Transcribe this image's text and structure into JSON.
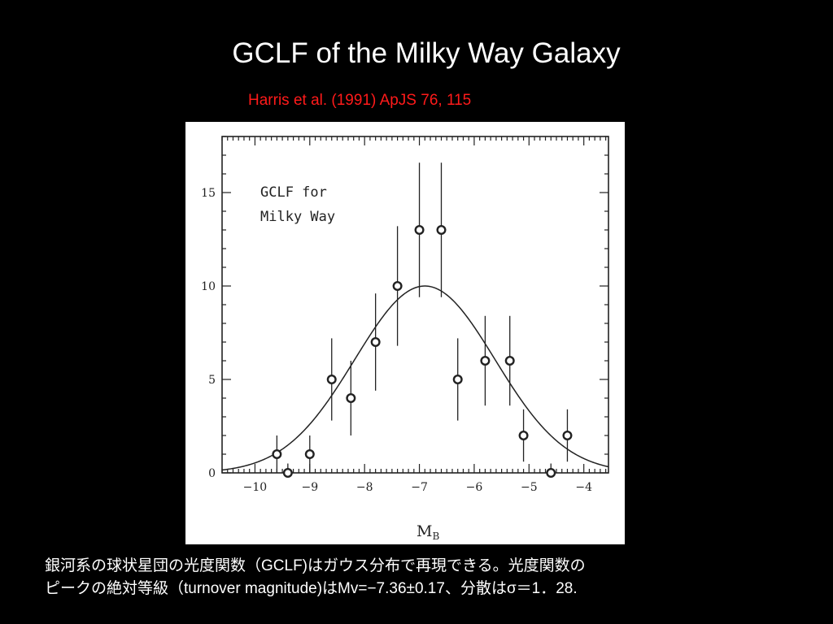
{
  "slide": {
    "title": "GCLF of the Milky Way Galaxy",
    "citation": "Harris et al. (1991) ApJS 76, 115",
    "caption_line1": "銀河系の球状星団の光度関数（GCLF)はガウス分布で再現できる。光度関数の",
    "caption_line2": "ピークの絶対等級（turnover magnitude)はMv=−7.36±0.17、分散はσ＝1．28."
  },
  "colors": {
    "background": "#000000",
    "title": "#ffffff",
    "citation": "#ff1a1a",
    "plot_background": "#ffffff",
    "ink": "#222222"
  },
  "chart_data": {
    "type": "scatter",
    "title": "",
    "legend_text_line1": "GCLF for",
    "legend_text_line2": "Milky Way",
    "legend_placement": "top-left",
    "xlabel": "M",
    "xlabel_sub": "B",
    "ylabel": "",
    "xlim": [
      -10.6,
      -3.55
    ],
    "ylim": [
      0,
      18
    ],
    "x_ticks": [
      -10,
      -9,
      -8,
      -7,
      -6,
      -5,
      -4
    ],
    "x_tick_labels": [
      "−10",
      "−9",
      "−8",
      "−7",
      "−6",
      "−5",
      "−4"
    ],
    "y_ticks": [
      0,
      5,
      10,
      15
    ],
    "y_tick_labels": [
      "0",
      "5",
      "10",
      "15"
    ],
    "grid": false,
    "series": [
      {
        "kind": "points_with_errorbars",
        "x": [
          -9.6,
          -9.4,
          -9.0,
          -8.6,
          -8.25,
          -7.8,
          -7.4,
          -7.0,
          -6.6,
          -6.3,
          -5.8,
          -5.35,
          -5.1,
          -4.6,
          -4.3
        ],
        "y": [
          1,
          0,
          1,
          5,
          4,
          7,
          10,
          13,
          13,
          5,
          6,
          6,
          2,
          0,
          2
        ],
        "err": [
          1.0,
          0.5,
          1.0,
          2.2,
          2.0,
          2.6,
          3.2,
          3.6,
          3.6,
          2.2,
          2.4,
          2.4,
          1.4,
          0.5,
          1.4
        ]
      },
      {
        "kind": "gaussian_fit",
        "mean": -6.9,
        "sigma": 1.28,
        "amplitude": 10
      }
    ]
  }
}
